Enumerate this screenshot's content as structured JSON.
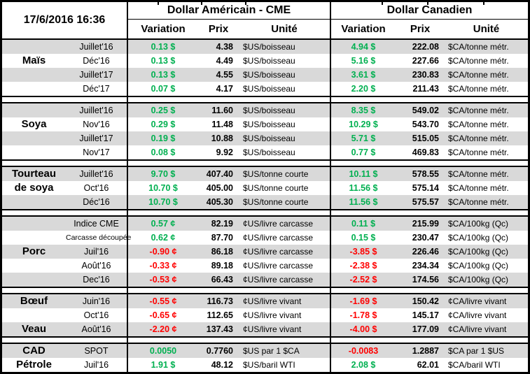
{
  "header": {
    "timestamp": "17/6/2016 16:36",
    "usd_group": "Dollar Américain - CME",
    "cad_group": "Dollar Canadien",
    "columns": [
      "Variation",
      "Prix",
      "Unité"
    ]
  },
  "colors": {
    "positive": "#00B050",
    "negative": "#FF0000",
    "stripe": "#D9D9D9",
    "border": "#000000"
  },
  "sections": [
    {
      "id": "mais",
      "rows": [
        {
          "cat": "",
          "contract": "Juillet'16",
          "us": {
            "var": "0.13 $",
            "dir": "up",
            "prix": "4.38",
            "unit": "$US/boisseau"
          },
          "ca": {
            "var": "4.94 $",
            "dir": "up",
            "prix": "222.08",
            "unit": "$CA/tonne métr."
          }
        },
        {
          "cat": "Maïs",
          "contract": "Déc'16",
          "us": {
            "var": "0.13 $",
            "dir": "up",
            "prix": "4.49",
            "unit": "$US/boisseau"
          },
          "ca": {
            "var": "5.16 $",
            "dir": "up",
            "prix": "227.66",
            "unit": "$CA/tonne métr."
          }
        },
        {
          "cat": "",
          "contract": "Juillet'17",
          "us": {
            "var": "0.13 $",
            "dir": "up",
            "prix": "4.55",
            "unit": "$US/boisseau"
          },
          "ca": {
            "var": "3.61 $",
            "dir": "up",
            "prix": "230.83",
            "unit": "$CA/tonne métr."
          }
        },
        {
          "cat": "",
          "contract": "Déc'17",
          "us": {
            "var": "0.07 $",
            "dir": "up",
            "prix": "4.17",
            "unit": "$US/boisseau"
          },
          "ca": {
            "var": "2.20 $",
            "dir": "up",
            "prix": "211.43",
            "unit": "$CA/tonne métr."
          }
        }
      ]
    },
    {
      "id": "soya",
      "rows": [
        {
          "cat": "",
          "contract": "Juillet'16",
          "us": {
            "var": "0.25 $",
            "dir": "up",
            "prix": "11.60",
            "unit": "$US/boisseau"
          },
          "ca": {
            "var": "8.35 $",
            "dir": "up",
            "prix": "549.02",
            "unit": "$CA/tonne métr."
          }
        },
        {
          "cat": "Soya",
          "contract": "Nov'16",
          "us": {
            "var": "0.29 $",
            "dir": "up",
            "prix": "11.48",
            "unit": "$US/boisseau"
          },
          "ca": {
            "var": "10.29 $",
            "dir": "up",
            "prix": "543.70",
            "unit": "$CA/tonne métr."
          }
        },
        {
          "cat": "",
          "contract": "Juillet'17",
          "us": {
            "var": "0.19 $",
            "dir": "up",
            "prix": "10.88",
            "unit": "$US/boisseau"
          },
          "ca": {
            "var": "5.71 $",
            "dir": "up",
            "prix": "515.05",
            "unit": "$CA/tonne métr."
          }
        },
        {
          "cat": "",
          "contract": "Nov'17",
          "us": {
            "var": "0.08 $",
            "dir": "up",
            "prix": "9.92",
            "unit": "$US/boisseau"
          },
          "ca": {
            "var": "0.77 $",
            "dir": "up",
            "prix": "469.83",
            "unit": "$CA/tonne métr."
          }
        }
      ]
    },
    {
      "id": "tourteau-de-soya",
      "rows": [
        {
          "cat": "Tourteau",
          "contract": "Juillet'16",
          "us": {
            "var": "9.70 $",
            "dir": "up",
            "prix": "407.40",
            "unit": "$US/tonne courte"
          },
          "ca": {
            "var": "10.11 $",
            "dir": "up",
            "prix": "578.55",
            "unit": "$CA/tonne métr."
          }
        },
        {
          "cat": "de soya",
          "contract": "Oct'16",
          "us": {
            "var": "10.70 $",
            "dir": "up",
            "prix": "405.00",
            "unit": "$US/tonne courte"
          },
          "ca": {
            "var": "11.56 $",
            "dir": "up",
            "prix": "575.14",
            "unit": "$CA/tonne métr."
          }
        },
        {
          "cat": "",
          "contract": "Déc'16",
          "us": {
            "var": "10.70 $",
            "dir": "up",
            "prix": "405.30",
            "unit": "$US/tonne courte"
          },
          "ca": {
            "var": "11.56 $",
            "dir": "up",
            "prix": "575.57",
            "unit": "$CA/tonne métr."
          }
        }
      ]
    },
    {
      "id": "porc",
      "rows": [
        {
          "cat": "",
          "contract": "Indice CME",
          "us": {
            "var": "0.57 ¢",
            "dir": "up",
            "prix": "82.19",
            "unit": "¢US/livre carcasse"
          },
          "ca": {
            "var": "0.11 $",
            "dir": "up",
            "prix": "215.99",
            "unit": "$CA/100kg (Qc)"
          }
        },
        {
          "cat": "",
          "contract": "Carcasse découpée",
          "small": true,
          "us": {
            "var": "0.62 ¢",
            "dir": "up",
            "prix": "87.70",
            "unit": "¢US/livre carcasse"
          },
          "ca": {
            "var": "0.15 $",
            "dir": "up",
            "prix": "230.47",
            "unit": "$CA/100kg (Qc)"
          }
        },
        {
          "cat": "Porc",
          "contract": "Juil'16",
          "us": {
            "var": "-0.90 ¢",
            "dir": "down",
            "prix": "86.18",
            "unit": "¢US/livre carcasse"
          },
          "ca": {
            "var": "-3.85 $",
            "dir": "down",
            "prix": "226.46",
            "unit": "$CA/100kg (Qc)"
          }
        },
        {
          "cat": "",
          "contract": "Août'16",
          "us": {
            "var": "-0.33 ¢",
            "dir": "down",
            "prix": "89.18",
            "unit": "¢US/livre carcasse"
          },
          "ca": {
            "var": "-2.38 $",
            "dir": "down",
            "prix": "234.34",
            "unit": "$CA/100kg (Qc)"
          }
        },
        {
          "cat": "",
          "contract": "Dec'16",
          "us": {
            "var": "-0.53 ¢",
            "dir": "down",
            "prix": "66.43",
            "unit": "¢US/livre carcasse"
          },
          "ca": {
            "var": "-2.52 $",
            "dir": "down",
            "prix": "174.56",
            "unit": "$CA/100kg (Qc)"
          }
        }
      ]
    },
    {
      "id": "boeuf-veau",
      "rows": [
        {
          "cat": "Bœuf",
          "contract": "Juin'16",
          "us": {
            "var": "-0.55 ¢",
            "dir": "down",
            "prix": "116.73",
            "unit": "¢US/livre vivant"
          },
          "ca": {
            "var": "-1.69 $",
            "dir": "down",
            "prix": "150.42",
            "unit": "¢CA/livre vivant"
          }
        },
        {
          "cat": "",
          "contract": "Oct'16",
          "us": {
            "var": "-0.65 ¢",
            "dir": "down",
            "prix": "112.65",
            "unit": "¢US/livre vivant"
          },
          "ca": {
            "var": "-1.78 $",
            "dir": "down",
            "prix": "145.17",
            "unit": "¢CA/livre vivant"
          }
        },
        {
          "cat": "Veau",
          "contract": "Août'16",
          "us": {
            "var": "-2.20 ¢",
            "dir": "down",
            "prix": "137.43",
            "unit": "¢US/livre vivant"
          },
          "ca": {
            "var": "-4.00 $",
            "dir": "down",
            "prix": "177.09",
            "unit": "¢CA/livre vivant"
          }
        }
      ]
    },
    {
      "id": "cad-petrole",
      "rows": [
        {
          "cat": "CAD",
          "contract": "SPOT",
          "us": {
            "var": "0.0050",
            "dir": "up",
            "prix": "0.7760",
            "unit": "$US par 1 $CA"
          },
          "ca": {
            "var": "-0.0083",
            "dir": "down",
            "prix": "1.2887",
            "unit": "$CA par 1 $US"
          }
        },
        {
          "cat": "Pétrole",
          "contract": "Juil'16",
          "us": {
            "var": "1.91 $",
            "dir": "up",
            "prix": "48.12",
            "unit": "$US/baril WTI"
          },
          "ca": {
            "var": "2.08 $",
            "dir": "up",
            "prix": "62.01",
            "unit": "$CA/baril WTI"
          }
        }
      ]
    }
  ]
}
